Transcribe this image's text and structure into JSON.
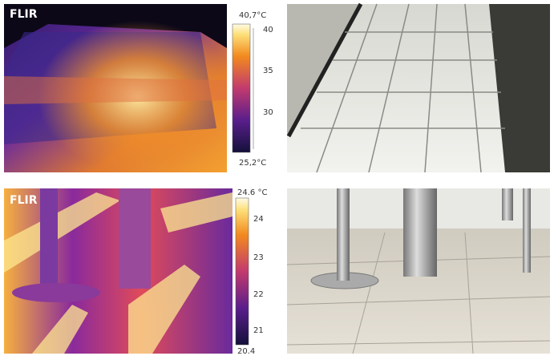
{
  "panels": [
    {
      "logo": "FLIR",
      "scale": {
        "max": "40,7°C",
        "ticks": [
          "40",
          "35",
          "30"
        ],
        "min": "25,2°C"
      }
    },
    {
      "logo": "FLIR",
      "scale": {
        "max": "24.6 °C",
        "ticks": [
          "24",
          "23",
          "22",
          "21"
        ],
        "min": "20.4"
      }
    }
  ]
}
